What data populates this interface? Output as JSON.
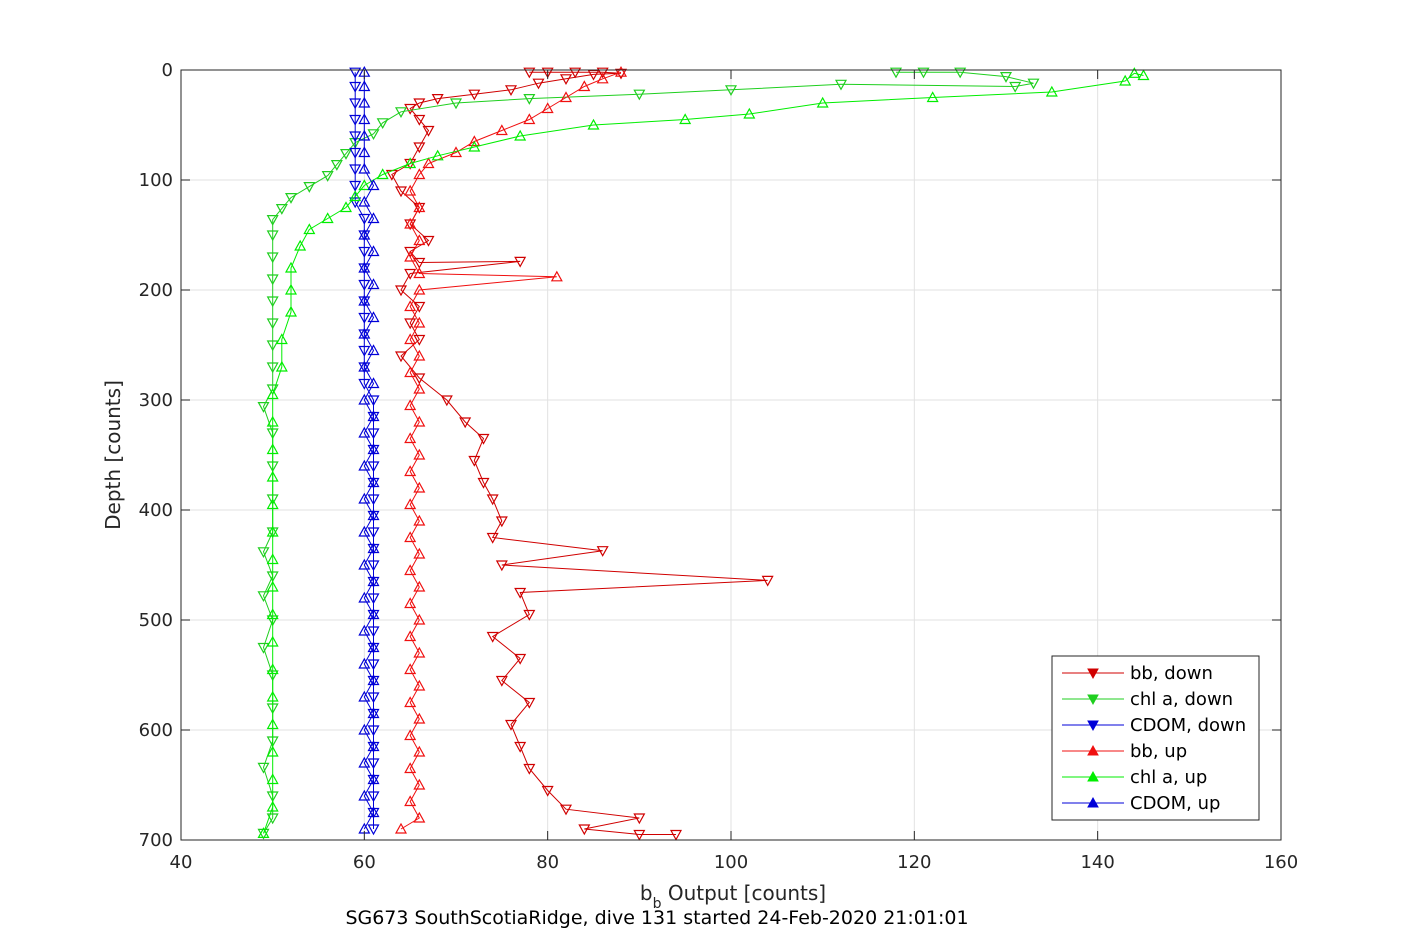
{
  "chart_data": {
    "type": "line",
    "title": "",
    "xlabel": "b",
    "xlabel_subscript": "b",
    "xlabel_rest": " Output [counts]",
    "ylabel": "Depth [counts]",
    "caption": "SG673 SouthScotiaRidge, dive 131 started 24-Feb-2020 21:01:01",
    "xlim": [
      40,
      160
    ],
    "ylim": [
      700,
      0
    ],
    "x_ticks": [
      40,
      60,
      80,
      100,
      120,
      140,
      160
    ],
    "y_ticks": [
      0,
      100,
      200,
      300,
      400,
      500,
      600,
      700
    ],
    "x_tick_labels": [
      "40",
      "60",
      "80",
      "100",
      "120",
      "140",
      "160"
    ],
    "y_tick_labels": [
      "0",
      "100",
      "200",
      "300",
      "400",
      "500",
      "600",
      "700"
    ],
    "grid": true,
    "legend_position": "bottom-right",
    "series": [
      {
        "name": "bb, down",
        "color": "#d00000",
        "marker": "triangle-down",
        "points": [
          [
            78,
            2
          ],
          [
            80,
            2
          ],
          [
            83,
            2
          ],
          [
            86,
            2
          ],
          [
            88,
            3
          ],
          [
            85,
            4
          ],
          [
            82,
            8
          ],
          [
            79,
            12
          ],
          [
            76,
            18
          ],
          [
            72,
            22
          ],
          [
            68,
            26
          ],
          [
            66,
            30
          ],
          [
            65,
            35
          ],
          [
            66,
            45
          ],
          [
            67,
            55
          ],
          [
            66,
            70
          ],
          [
            65,
            85
          ],
          [
            63,
            95
          ],
          [
            64,
            110
          ],
          [
            66,
            125
          ],
          [
            65,
            140
          ],
          [
            67,
            155
          ],
          [
            65,
            165
          ],
          [
            66,
            175
          ],
          [
            77,
            174
          ],
          [
            65,
            185
          ],
          [
            64,
            200
          ],
          [
            66,
            215
          ],
          [
            65,
            230
          ],
          [
            66,
            245
          ],
          [
            64,
            260
          ],
          [
            66,
            280
          ],
          [
            69,
            300
          ],
          [
            71,
            320
          ],
          [
            73,
            335
          ],
          [
            72,
            355
          ],
          [
            73,
            375
          ],
          [
            74,
            390
          ],
          [
            75,
            410
          ],
          [
            74,
            425
          ],
          [
            86,
            437
          ],
          [
            75,
            450
          ],
          [
            104,
            464
          ],
          [
            77,
            475
          ],
          [
            78,
            495
          ],
          [
            74,
            515
          ],
          [
            77,
            535
          ],
          [
            75,
            555
          ],
          [
            78,
            575
          ],
          [
            76,
            595
          ],
          [
            77,
            615
          ],
          [
            78,
            635
          ],
          [
            80,
            655
          ],
          [
            82,
            672
          ],
          [
            90,
            680
          ],
          [
            84,
            690
          ],
          [
            90,
            695
          ],
          [
            94,
            695
          ]
        ]
      },
      {
        "name": "chl a, down",
        "color": "#1fcf1f",
        "marker": "triangle-down",
        "points": [
          [
            118,
            2
          ],
          [
            121,
            2
          ],
          [
            125,
            2
          ],
          [
            130,
            6
          ],
          [
            133,
            12
          ],
          [
            131,
            15
          ],
          [
            112,
            13
          ],
          [
            100,
            18
          ],
          [
            90,
            22
          ],
          [
            78,
            26
          ],
          [
            70,
            30
          ],
          [
            64,
            38
          ],
          [
            62,
            48
          ],
          [
            61,
            58
          ],
          [
            59,
            66
          ],
          [
            58,
            76
          ],
          [
            57,
            86
          ],
          [
            56,
            96
          ],
          [
            54,
            106
          ],
          [
            52,
            116
          ],
          [
            51,
            126
          ],
          [
            50,
            136
          ],
          [
            50,
            150
          ],
          [
            50,
            170
          ],
          [
            50,
            190
          ],
          [
            50,
            210
          ],
          [
            50,
            230
          ],
          [
            50,
            250
          ],
          [
            50,
            270
          ],
          [
            50,
            290
          ],
          [
            49,
            306
          ],
          [
            50,
            330
          ],
          [
            50,
            360
          ],
          [
            50,
            390
          ],
          [
            50,
            420
          ],
          [
            49,
            438
          ],
          [
            50,
            460
          ],
          [
            49,
            478
          ],
          [
            50,
            500
          ],
          [
            49,
            525
          ],
          [
            50,
            550
          ],
          [
            50,
            580
          ],
          [
            50,
            610
          ],
          [
            49,
            634
          ],
          [
            50,
            660
          ],
          [
            50,
            680
          ],
          [
            49,
            694
          ]
        ]
      },
      {
        "name": "CDOM, down",
        "color": "#0000d8",
        "marker": "triangle-down",
        "points": [
          [
            59,
            2
          ],
          [
            59,
            15
          ],
          [
            59,
            30
          ],
          [
            59,
            45
          ],
          [
            59,
            60
          ],
          [
            59,
            75
          ],
          [
            59,
            90
          ],
          [
            59,
            105
          ],
          [
            59,
            120
          ],
          [
            60,
            135
          ],
          [
            60,
            150
          ],
          [
            60,
            165
          ],
          [
            60,
            180
          ],
          [
            60,
            195
          ],
          [
            60,
            210
          ],
          [
            60,
            225
          ],
          [
            60,
            240
          ],
          [
            60,
            255
          ],
          [
            60,
            270
          ],
          [
            60,
            285
          ],
          [
            61,
            300
          ],
          [
            61,
            315
          ],
          [
            61,
            330
          ],
          [
            61,
            345
          ],
          [
            61,
            360
          ],
          [
            61,
            375
          ],
          [
            61,
            390
          ],
          [
            61,
            405
          ],
          [
            61,
            420
          ],
          [
            61,
            435
          ],
          [
            61,
            450
          ],
          [
            61,
            465
          ],
          [
            61,
            480
          ],
          [
            61,
            495
          ],
          [
            61,
            510
          ],
          [
            61,
            525
          ],
          [
            61,
            540
          ],
          [
            61,
            555
          ],
          [
            61,
            570
          ],
          [
            61,
            585
          ],
          [
            61,
            600
          ],
          [
            61,
            615
          ],
          [
            61,
            630
          ],
          [
            61,
            645
          ],
          [
            61,
            660
          ],
          [
            61,
            675
          ],
          [
            61,
            690
          ]
        ]
      },
      {
        "name": "bb, up",
        "color": "#f01010",
        "marker": "triangle-up",
        "points": [
          [
            64,
            690
          ],
          [
            66,
            680
          ],
          [
            65,
            665
          ],
          [
            66,
            650
          ],
          [
            65,
            635
          ],
          [
            66,
            620
          ],
          [
            65,
            605
          ],
          [
            66,
            590
          ],
          [
            65,
            575
          ],
          [
            66,
            560
          ],
          [
            65,
            545
          ],
          [
            66,
            530
          ],
          [
            65,
            515
          ],
          [
            66,
            500
          ],
          [
            65,
            485
          ],
          [
            66,
            470
          ],
          [
            65,
            455
          ],
          [
            66,
            440
          ],
          [
            65,
            425
          ],
          [
            66,
            410
          ],
          [
            65,
            395
          ],
          [
            66,
            380
          ],
          [
            65,
            365
          ],
          [
            66,
            350
          ],
          [
            65,
            335
          ],
          [
            66,
            320
          ],
          [
            65,
            305
          ],
          [
            66,
            290
          ],
          [
            65,
            275
          ],
          [
            66,
            260
          ],
          [
            65,
            245
          ],
          [
            66,
            230
          ],
          [
            65,
            215
          ],
          [
            66,
            200
          ],
          [
            81,
            188
          ],
          [
            66,
            185
          ],
          [
            65,
            170
          ],
          [
            66,
            155
          ],
          [
            65,
            140
          ],
          [
            66,
            125
          ],
          [
            65,
            110
          ],
          [
            66,
            95
          ],
          [
            67,
            85
          ],
          [
            70,
            75
          ],
          [
            72,
            65
          ],
          [
            75,
            55
          ],
          [
            78,
            45
          ],
          [
            80,
            35
          ],
          [
            82,
            25
          ],
          [
            84,
            15
          ],
          [
            86,
            8
          ],
          [
            88,
            2
          ]
        ]
      },
      {
        "name": "chl a, up",
        "color": "#00ee00",
        "marker": "triangle-up",
        "points": [
          [
            49,
            694
          ],
          [
            50,
            670
          ],
          [
            50,
            645
          ],
          [
            50,
            620
          ],
          [
            50,
            595
          ],
          [
            50,
            570
          ],
          [
            50,
            545
          ],
          [
            50,
            520
          ],
          [
            50,
            495
          ],
          [
            50,
            470
          ],
          [
            50,
            445
          ],
          [
            50,
            420
          ],
          [
            50,
            395
          ],
          [
            50,
            370
          ],
          [
            50,
            345
          ],
          [
            50,
            320
          ],
          [
            50,
            295
          ],
          [
            51,
            270
          ],
          [
            51,
            245
          ],
          [
            52,
            220
          ],
          [
            52,
            200
          ],
          [
            52,
            180
          ],
          [
            53,
            160
          ],
          [
            54,
            145
          ],
          [
            56,
            135
          ],
          [
            58,
            125
          ],
          [
            59,
            115
          ],
          [
            60,
            105
          ],
          [
            62,
            95
          ],
          [
            65,
            85
          ],
          [
            68,
            78
          ],
          [
            72,
            70
          ],
          [
            77,
            60
          ],
          [
            85,
            50
          ],
          [
            95,
            45
          ],
          [
            102,
            40
          ],
          [
            110,
            30
          ],
          [
            122,
            25
          ],
          [
            135,
            20
          ],
          [
            143,
            10
          ],
          [
            144,
            3
          ],
          [
            145,
            5
          ]
        ]
      },
      {
        "name": "CDOM, up",
        "color": "#0000d8",
        "marker": "triangle-up",
        "points": [
          [
            60,
            690
          ],
          [
            61,
            675
          ],
          [
            60,
            660
          ],
          [
            61,
            645
          ],
          [
            60,
            630
          ],
          [
            61,
            615
          ],
          [
            60,
            600
          ],
          [
            61,
            585
          ],
          [
            60,
            570
          ],
          [
            61,
            555
          ],
          [
            60,
            540
          ],
          [
            61,
            525
          ],
          [
            60,
            510
          ],
          [
            61,
            495
          ],
          [
            60,
            480
          ],
          [
            61,
            465
          ],
          [
            60,
            450
          ],
          [
            61,
            435
          ],
          [
            60,
            420
          ],
          [
            61,
            405
          ],
          [
            60,
            390
          ],
          [
            61,
            375
          ],
          [
            60,
            360
          ],
          [
            61,
            345
          ],
          [
            60,
            330
          ],
          [
            61,
            315
          ],
          [
            60,
            300
          ],
          [
            61,
            285
          ],
          [
            60,
            270
          ],
          [
            61,
            255
          ],
          [
            60,
            240
          ],
          [
            61,
            225
          ],
          [
            60,
            210
          ],
          [
            61,
            195
          ],
          [
            60,
            180
          ],
          [
            61,
            165
          ],
          [
            60,
            150
          ],
          [
            61,
            135
          ],
          [
            60,
            120
          ],
          [
            61,
            105
          ],
          [
            60,
            90
          ],
          [
            60,
            75
          ],
          [
            60,
            60
          ],
          [
            60,
            45
          ],
          [
            60,
            30
          ],
          [
            60,
            15
          ],
          [
            60,
            2
          ]
        ]
      }
    ]
  }
}
